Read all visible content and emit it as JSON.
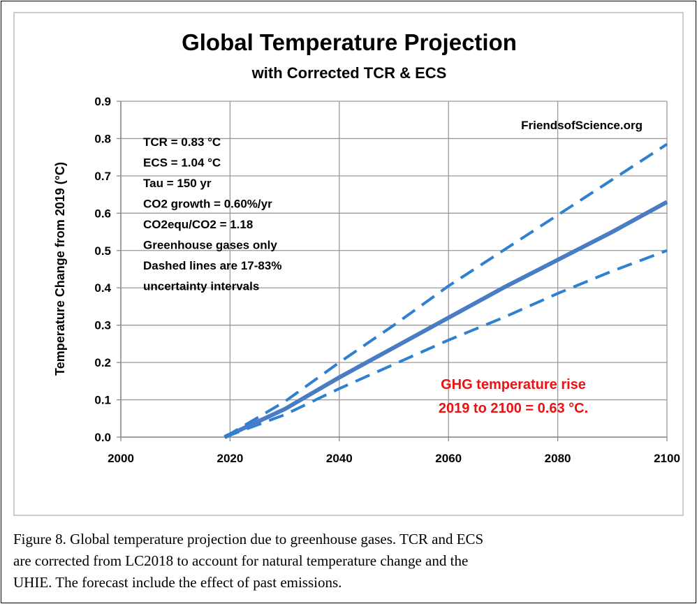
{
  "chart_data": {
    "type": "line",
    "title": "Global Temperature Projection",
    "subtitle": "with Corrected TCR & ECS",
    "y_label": "Temperature Change from 2019 (°C)",
    "x": [
      2019,
      2030,
      2040,
      2050,
      2060,
      2070,
      2080,
      2090,
      2100
    ],
    "series": [
      {
        "color": "#4a7cc4",
        "dashed": false,
        "values": [
          0,
          0.075,
          0.16,
          0.24,
          0.32,
          0.4,
          0.475,
          0.55,
          0.63
        ]
      },
      {
        "color": "#2f80d0",
        "dashed": true,
        "values": [
          0,
          0.095,
          0.2,
          0.3,
          0.405,
          0.5,
          0.595,
          0.69,
          0.785
        ]
      },
      {
        "color": "#2f80d0",
        "dashed": true,
        "values": [
          0,
          0.06,
          0.13,
          0.195,
          0.26,
          0.32,
          0.385,
          0.445,
          0.5
        ]
      }
    ],
    "xlim": [
      2000,
      2100
    ],
    "xticks": [
      2000,
      2020,
      2040,
      2060,
      2080,
      2100
    ],
    "ylim": [
      0,
      0.9
    ],
    "yticks": [
      {
        "value": 0,
        "label": "0.0"
      },
      0.1,
      0.2,
      0.3,
      0.4,
      0.5,
      0.6,
      0.7,
      0.8,
      0.9
    ],
    "grid": true,
    "annotations": {
      "parameters": [
        "TCR = 0.83 °C",
        "ECS = 1.04 °C",
        "Tau = 150 yr",
        "CO2 growth = 0.60%/yr",
        "CO2equ/CO2 = 1.18",
        "Greenhouse gases only",
        "Dashed lines are 17-83%",
        "uncertainty intervals"
      ],
      "source": "FriendsofScience.org",
      "result": [
        "GHG temperature rise",
        "2019 to 2100 = 0.63 °C."
      ]
    }
  },
  "caption": [
    "Figure 8.  Global temperature projection due to greenhouse gases. TCR and ECS",
    "are corrected from LC2018 to account for natural temperature change and the",
    "UHIE. The forecast include the effect of past emissions."
  ]
}
